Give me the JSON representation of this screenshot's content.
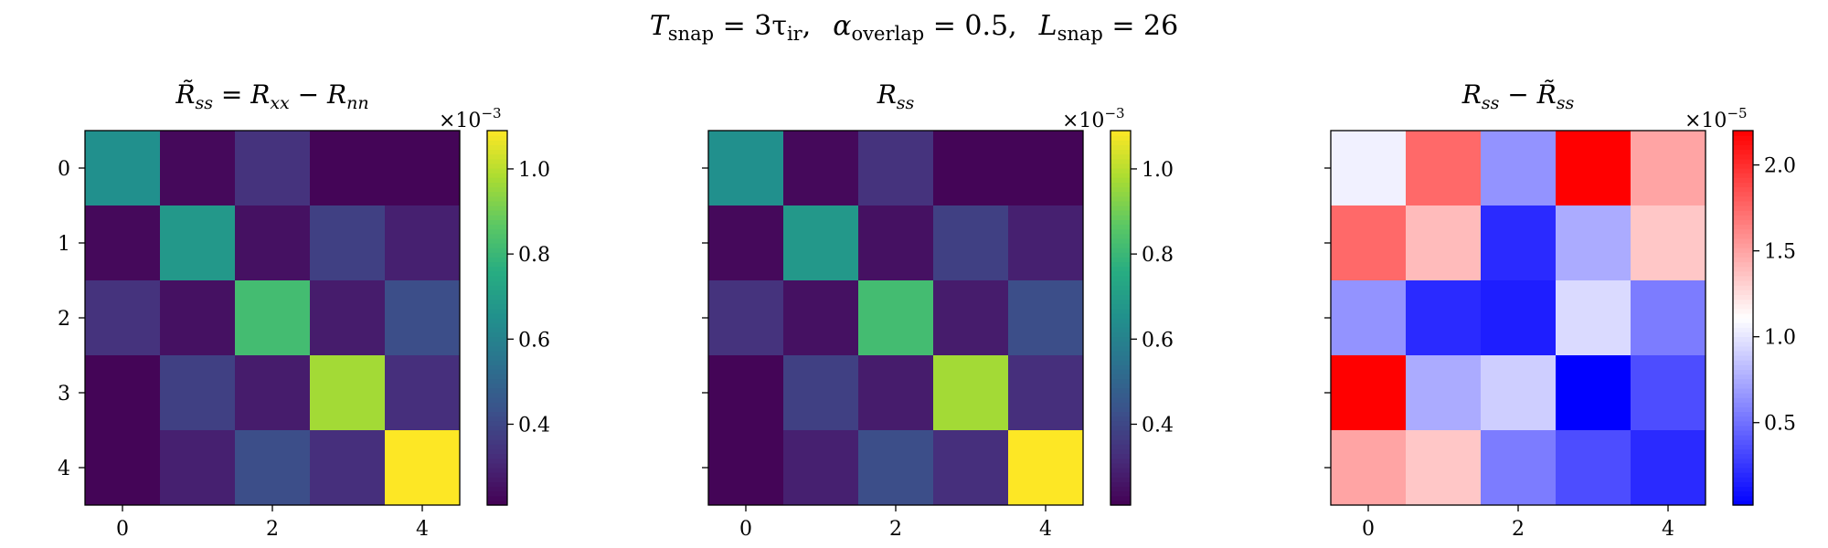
{
  "suptitle": {
    "t_symbol": "T",
    "t_sub": "snap",
    "t_value": " = 3τ",
    "t_value_sub": "ir",
    "t_sep": ",",
    "alpha_symbol": "α",
    "alpha_sub": "overlap",
    "alpha_value": " = 0.5,",
    "l_symbol": "L",
    "l_sub": "snap",
    "l_value": " = 26"
  },
  "chart_data": [
    {
      "type": "heatmap",
      "title": "R̃ss = Rxx − Rnn",
      "title_parts": {
        "a": "R̃",
        "a_sub": "ss",
        "eq": " = ",
        "b": "R",
        "b_sub": "xx",
        "minus": " − ",
        "c": "R",
        "c_sub": "nn"
      },
      "colormap": "viridis",
      "x_ticks": [
        0,
        2,
        4
      ],
      "y_ticks": [
        0,
        1,
        2,
        3,
        4
      ],
      "colorbar": {
        "range": [
          0.21,
          1.09
        ],
        "ticks": [
          0.4,
          0.6,
          0.8,
          1.0
        ],
        "tick_labels": [
          "0.4",
          "0.6",
          "0.8",
          "1.0"
        ],
        "multiplier": "×10",
        "exponent": "−3"
      },
      "matrix": [
        [
          0.65,
          0.23,
          0.34,
          0.22,
          0.22
        ],
        [
          0.23,
          0.68,
          0.25,
          0.38,
          0.29
        ],
        [
          0.34,
          0.25,
          0.82,
          0.28,
          0.42
        ],
        [
          0.22,
          0.38,
          0.28,
          0.97,
          0.33
        ],
        [
          0.22,
          0.29,
          0.42,
          0.33,
          1.09
        ]
      ]
    },
    {
      "type": "heatmap",
      "title": "Rss",
      "title_parts": {
        "a": "R",
        "a_sub": "ss"
      },
      "colormap": "viridis",
      "x_ticks": [
        0,
        2,
        4
      ],
      "y_ticks": [
        0,
        1,
        2,
        3,
        4
      ],
      "colorbar": {
        "range": [
          0.21,
          1.09
        ],
        "ticks": [
          0.4,
          0.6,
          0.8,
          1.0
        ],
        "tick_labels": [
          "0.4",
          "0.6",
          "0.8",
          "1.0"
        ],
        "multiplier": "×10",
        "exponent": "−3"
      },
      "matrix": [
        [
          0.65,
          0.23,
          0.34,
          0.22,
          0.22
        ],
        [
          0.23,
          0.68,
          0.25,
          0.38,
          0.29
        ],
        [
          0.34,
          0.25,
          0.82,
          0.28,
          0.42
        ],
        [
          0.22,
          0.38,
          0.28,
          0.97,
          0.33
        ],
        [
          0.22,
          0.29,
          0.42,
          0.33,
          1.09
        ]
      ]
    },
    {
      "type": "heatmap",
      "title": "Rss − R̃ss",
      "title_parts": {
        "a": "R",
        "a_sub": "ss",
        "minus": " − ",
        "b": "R̃",
        "b_sub": "ss"
      },
      "colormap": "bwr",
      "x_ticks": [
        0,
        2,
        4
      ],
      "y_ticks": [
        0,
        1,
        2,
        3,
        4
      ],
      "colorbar": {
        "range": [
          0.02,
          2.2
        ],
        "ticks": [
          0.5,
          1.0,
          1.5,
          2.0
        ],
        "tick_labels": [
          "0.5",
          "1.0",
          "1.5",
          "2.0"
        ],
        "multiplier": "×10",
        "exponent": "−5"
      },
      "matrix": [
        [
          1.05,
          1.75,
          0.65,
          2.2,
          1.5
        ],
        [
          1.75,
          1.4,
          0.2,
          0.75,
          1.35
        ],
        [
          0.65,
          0.2,
          0.15,
          0.95,
          0.55
        ],
        [
          2.2,
          0.75,
          0.9,
          0.02,
          0.35
        ],
        [
          1.5,
          1.35,
          0.55,
          0.35,
          0.2
        ]
      ]
    }
  ]
}
